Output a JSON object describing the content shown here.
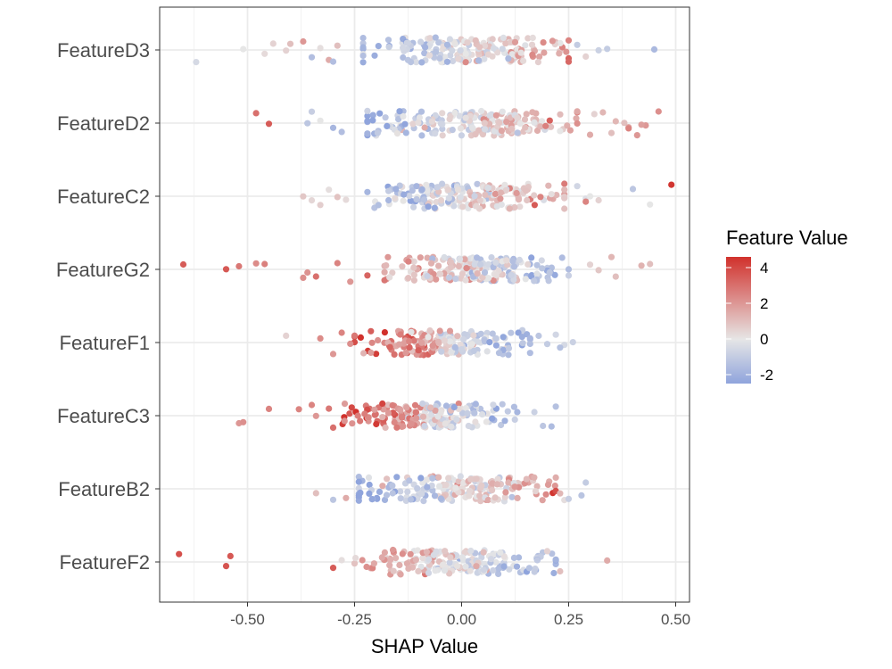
{
  "chart_data": {
    "type": "scatter",
    "subtype": "beeswarm-jitter",
    "title": "",
    "xlabel": "SHAP Value",
    "ylabel": "",
    "xlim": [
      -0.7,
      0.53
    ],
    "x_ticks": [
      -0.5,
      -0.25,
      0.0,
      0.25,
      0.5
    ],
    "x_tick_labels": [
      "-0.50",
      "-0.25",
      "0.00",
      "0.25",
      "0.50"
    ],
    "grid": true,
    "features": [
      "FeatureD3",
      "FeatureD2",
      "FeatureC2",
      "FeatureG2",
      "FeatureF1",
      "FeatureC3",
      "FeatureB2",
      "FeatureF2"
    ],
    "color_scale": {
      "title": "Feature Value",
      "low": -2.5,
      "mid": 0,
      "high": 4.6,
      "low_color": "#8fa4dc",
      "mid_color": "#e6e6e6",
      "high_color": "#d1312c",
      "ticks": [
        4,
        2,
        0,
        -2
      ],
      "tick_labels": [
        "4",
        "2",
        "0",
        "-2"
      ],
      "placement": "right"
    },
    "series": [
      {
        "feature": "FeatureD3",
        "core_range": [
          -0.23,
          0.25
        ],
        "core_count": 190,
        "outliers": [
          [
            -0.51,
            0.0
          ],
          [
            -0.62,
            -0.5
          ],
          [
            -0.46,
            0.3
          ],
          [
            -0.44,
            0.5
          ],
          [
            -0.41,
            0.5
          ],
          [
            -0.4,
            1.0
          ],
          [
            -0.37,
            2.0
          ],
          [
            -0.35,
            -1.5
          ],
          [
            -0.33,
            0.2
          ],
          [
            -0.31,
            1.5
          ],
          [
            -0.29,
            1.0
          ],
          [
            -0.3,
            -1.5
          ],
          [
            0.32,
            -0.8
          ],
          [
            0.34,
            -1.0
          ],
          [
            0.45,
            -1.7
          ],
          [
            0.27,
            -1.0
          ],
          [
            0.29,
            0.5
          ]
        ]
      },
      {
        "feature": "FeatureD2",
        "core_range": [
          -0.22,
          0.27
        ],
        "core_count": 190,
        "outliers": [
          [
            -0.48,
            3.0
          ],
          [
            -0.45,
            3.5
          ],
          [
            -0.36,
            -1.2
          ],
          [
            -0.35,
            -0.9
          ],
          [
            -0.33,
            0.0
          ],
          [
            -0.3,
            -1.8
          ],
          [
            -0.28,
            -1.5
          ],
          [
            0.3,
            1.5
          ],
          [
            0.31,
            0.5
          ],
          [
            0.35,
            1.0
          ],
          [
            0.36,
            1.2
          ],
          [
            0.38,
            1.0
          ],
          [
            0.39,
            1.5
          ],
          [
            0.41,
            2.0
          ],
          [
            0.43,
            2.0
          ],
          [
            0.46,
            2.2
          ],
          [
            0.42,
            1.8
          ],
          [
            0.39,
            2.5
          ],
          [
            0.33,
            1.2
          ]
        ]
      },
      {
        "feature": "FeatureC2",
        "core_range": [
          -0.22,
          0.24
        ],
        "core_count": 190,
        "outliers": [
          [
            -0.37,
            0.8
          ],
          [
            -0.35,
            0.4
          ],
          [
            -0.33,
            0.6
          ],
          [
            -0.31,
            0.2
          ],
          [
            -0.29,
            0.9
          ],
          [
            -0.27,
            0.3
          ],
          [
            0.27,
            -0.6
          ],
          [
            0.29,
            -0.3
          ],
          [
            0.3,
            0.0
          ],
          [
            0.32,
            0.5
          ],
          [
            0.4,
            -1.2
          ],
          [
            0.44,
            0.0
          ],
          [
            0.49,
            4.5
          ],
          [
            0.29,
            2.5
          ]
        ]
      },
      {
        "feature": "FeatureG2",
        "core_range": [
          -0.18,
          0.25
        ],
        "core_count": 190,
        "outliers": [
          [
            -0.65,
            3.5
          ],
          [
            -0.55,
            3.6
          ],
          [
            -0.52,
            2.8
          ],
          [
            -0.48,
            2.3
          ],
          [
            -0.46,
            2.6
          ],
          [
            -0.34,
            3.0
          ],
          [
            -0.37,
            2.2
          ],
          [
            -0.36,
            2.1
          ],
          [
            -0.29,
            2.5
          ],
          [
            -0.26,
            2.0
          ],
          [
            -0.22,
            3.3
          ],
          [
            0.35,
            1.2
          ],
          [
            0.36,
            1.0
          ],
          [
            0.42,
            1.3
          ],
          [
            0.44,
            1.0
          ],
          [
            0.3,
            0.5
          ],
          [
            0.32,
            0.8
          ]
        ]
      },
      {
        "feature": "FeatureF1",
        "core_range": [
          -0.25,
          0.16
        ],
        "core_count": 190,
        "outliers": [
          [
            -0.41,
            0.5
          ],
          [
            -0.33,
            2.3
          ],
          [
            -0.3,
            2.0
          ],
          [
            -0.28,
            2.5
          ],
          [
            -0.26,
            2.2
          ],
          [
            0.18,
            -1.2
          ],
          [
            0.2,
            -1.0
          ],
          [
            0.22,
            -0.6
          ],
          [
            0.24,
            -0.5
          ],
          [
            0.26,
            -0.8
          ],
          [
            0.23,
            -1.4
          ]
        ]
      },
      {
        "feature": "FeatureC3",
        "core_range": [
          -0.28,
          0.13
        ],
        "core_count": 190,
        "outliers": [
          [
            -0.52,
            2.0
          ],
          [
            -0.51,
            2.2
          ],
          [
            -0.45,
            2.5
          ],
          [
            -0.38,
            2.5
          ],
          [
            -0.35,
            2.5
          ],
          [
            -0.34,
            2.0
          ],
          [
            -0.3,
            3.0
          ],
          [
            -0.31,
            2.8
          ],
          [
            0.17,
            -0.8
          ],
          [
            0.19,
            -1.2
          ],
          [
            0.21,
            -1.6
          ],
          [
            0.22,
            -1.4
          ]
        ]
      },
      {
        "feature": "FeatureB2",
        "core_range": [
          -0.24,
          0.22
        ],
        "core_count": 190,
        "outliers": [
          [
            -0.34,
            1.0
          ],
          [
            -0.3,
            -1.2
          ],
          [
            -0.27,
            1.5
          ],
          [
            0.24,
            0.2
          ],
          [
            0.25,
            -0.9
          ],
          [
            0.28,
            -1.3
          ],
          [
            0.29,
            -1.0
          ],
          [
            0.23,
            1.2
          ]
        ]
      },
      {
        "feature": "FeatureF2",
        "core_range": [
          -0.25,
          0.22
        ],
        "core_count": 190,
        "outliers": [
          [
            -0.66,
            3.8
          ],
          [
            -0.55,
            3.7
          ],
          [
            -0.54,
            3.6
          ],
          [
            -0.3,
            3.5
          ],
          [
            -0.28,
            0.2
          ],
          [
            0.23,
            1.0
          ],
          [
            0.34,
            1.5
          ],
          [
            0.2,
            0.5
          ]
        ]
      }
    ]
  }
}
